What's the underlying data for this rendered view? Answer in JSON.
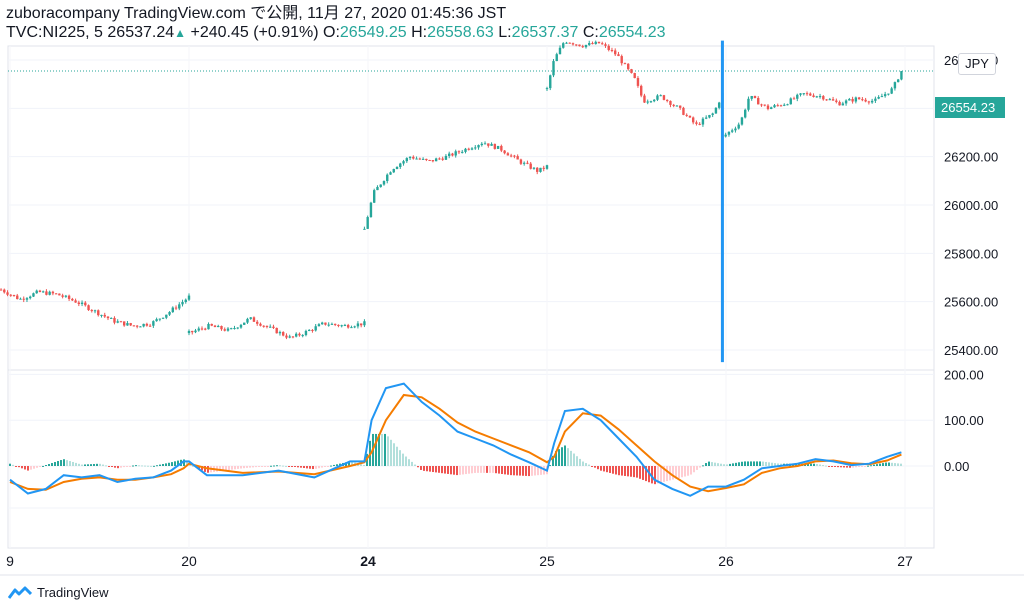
{
  "header": {
    "line1": "zuboracompany TradingView.com で公開, 11月 27, 2020 01:45:36 JST",
    "symbol": "TVC:NI225, 5",
    "price": "26537.24",
    "change": "+240.45 (+0.91%)",
    "o_label": "O:",
    "o_value": "26549.25",
    "h_label": "H:",
    "h_value": "26558.63",
    "l_label": "L:",
    "l_value": "26537.37",
    "c_label": "C:",
    "c_value": "26554.23",
    "up_arrow": "▲"
  },
  "currency_button": "JPY",
  "last_price_label": "26554.23",
  "footer": {
    "brand": "TradingView",
    "logo_icon": "tradingview-logo-icon"
  },
  "colors": {
    "up": "#26a69a",
    "down": "#ef5350",
    "macd": "#2196f3",
    "signal": "#f57c00",
    "vline": "#2196f3"
  },
  "chart_data": [
    {
      "type": "candlestick",
      "title": "",
      "yticks": [
        "26600.00",
        "26400.00",
        "26200.00",
        "26000.00",
        "25800.00",
        "25600.00",
        "25400.00"
      ],
      "ylim": [
        25300,
        26700
      ],
      "xticks": [
        {
          "label": "9",
          "pos": 0.0,
          "bold": false
        },
        {
          "label": "20",
          "pos": 1.0,
          "bold": false
        },
        {
          "label": "24",
          "pos": 2.0,
          "bold": true
        },
        {
          "label": "25",
          "pos": 3.0,
          "bold": false
        },
        {
          "label": "26",
          "pos": 4.0,
          "bold": false
        },
        {
          "label": "27",
          "pos": 5.0,
          "bold": false
        }
      ],
      "last_price": 26554.23,
      "vertical_line": {
        "pos": 3.98,
        "from": 25350,
        "to": 26680
      },
      "segments": [
        {
          "x0": -0.05,
          "x1": 1.0,
          "points": [
            [
              0.0,
              25650
            ],
            [
              0.1,
              25610
            ],
            [
              0.2,
              25640
            ],
            [
              0.3,
              25630
            ],
            [
              0.4,
              25600
            ],
            [
              0.5,
              25560
            ],
            [
              0.6,
              25520
            ],
            [
              0.7,
              25500
            ],
            [
              0.8,
              25510
            ],
            [
              0.9,
              25560
            ],
            [
              1.0,
              25620
            ]
          ]
        },
        {
          "x0": 1.0,
          "x1": 1.98,
          "points": [
            [
              0.0,
              25470
            ],
            [
              0.15,
              25500
            ],
            [
              0.3,
              25480
            ],
            [
              0.45,
              25530
            ],
            [
              0.6,
              25490
            ],
            [
              0.75,
              25450
            ],
            [
              0.85,
              25470
            ],
            [
              1.0,
              25510
            ],
            [
              1.15,
              25500
            ],
            [
              1.3,
              25510
            ]
          ]
        },
        {
          "x0": 1.98,
          "x1": 3.0,
          "points": [
            [
              0.0,
              25900
            ],
            [
              0.05,
              26050
            ],
            [
              0.15,
              26150
            ],
            [
              0.25,
              26200
            ],
            [
              0.35,
              26180
            ],
            [
              0.45,
              26200
            ],
            [
              0.55,
              26230
            ],
            [
              0.65,
              26260
            ],
            [
              0.75,
              26230
            ],
            [
              0.85,
              26180
            ],
            [
              0.95,
              26140
            ],
            [
              1.0,
              26160
            ]
          ]
        },
        {
          "x0": 3.0,
          "x1": 3.98,
          "points": [
            [
              0.0,
              26480
            ],
            [
              0.04,
              26600
            ],
            [
              0.1,
              26680
            ],
            [
              0.2,
              26660
            ],
            [
              0.3,
              26670
            ],
            [
              0.4,
              26620
            ],
            [
              0.5,
              26520
            ],
            [
              0.55,
              26430
            ],
            [
              0.65,
              26450
            ],
            [
              0.75,
              26400
            ],
            [
              0.85,
              26330
            ],
            [
              0.95,
              26380
            ],
            [
              1.0,
              26460
            ]
          ]
        },
        {
          "x0": 3.98,
          "x1": 4.98,
          "points": [
            [
              0.0,
              26280
            ],
            [
              0.1,
              26340
            ],
            [
              0.15,
              26450
            ],
            [
              0.25,
              26400
            ],
            [
              0.35,
              26420
            ],
            [
              0.45,
              26460
            ],
            [
              0.55,
              26450
            ],
            [
              0.65,
              26420
            ],
            [
              0.75,
              26440
            ],
            [
              0.85,
              26430
            ],
            [
              0.95,
              26480
            ],
            [
              1.0,
              26554
            ]
          ]
        }
      ]
    },
    {
      "type": "macd",
      "title": "",
      "yticks": [
        "200.00",
        "100.00",
        "0.00"
      ],
      "ylim": [
        -130,
        210
      ],
      "macd": [
        [
          0.0,
          -30
        ],
        [
          0.1,
          -60
        ],
        [
          0.2,
          -50
        ],
        [
          0.3,
          -20
        ],
        [
          0.4,
          -25
        ],
        [
          0.5,
          -20
        ],
        [
          0.6,
          -35
        ],
        [
          0.7,
          -28
        ],
        [
          0.8,
          -25
        ],
        [
          0.9,
          -10
        ],
        [
          0.97,
          10
        ],
        [
          1.0,
          10
        ],
        [
          1.1,
          -20
        ],
        [
          1.3,
          -20
        ],
        [
          1.5,
          -10
        ],
        [
          1.7,
          -25
        ],
        [
          1.9,
          10
        ],
        [
          1.98,
          10
        ],
        [
          2.02,
          100
        ],
        [
          2.1,
          170
        ],
        [
          2.2,
          180
        ],
        [
          2.3,
          140
        ],
        [
          2.4,
          110
        ],
        [
          2.5,
          75
        ],
        [
          2.6,
          60
        ],
        [
          2.7,
          45
        ],
        [
          2.8,
          25
        ],
        [
          2.9,
          8
        ],
        [
          3.0,
          -10
        ],
        [
          3.04,
          50
        ],
        [
          3.1,
          120
        ],
        [
          3.2,
          125
        ],
        [
          3.3,
          100
        ],
        [
          3.4,
          60
        ],
        [
          3.5,
          20
        ],
        [
          3.6,
          -30
        ],
        [
          3.7,
          -50
        ],
        [
          3.8,
          -65
        ],
        [
          3.9,
          -45
        ],
        [
          4.0,
          -45
        ],
        [
          4.1,
          -30
        ],
        [
          4.2,
          -5
        ],
        [
          4.3,
          0
        ],
        [
          4.4,
          5
        ],
        [
          4.5,
          15
        ],
        [
          4.6,
          10
        ],
        [
          4.7,
          2
        ],
        [
          4.8,
          5
        ],
        [
          4.9,
          20
        ],
        [
          4.98,
          30
        ]
      ],
      "signal": [
        [
          0.0,
          -35
        ],
        [
          0.1,
          -50
        ],
        [
          0.2,
          -52
        ],
        [
          0.3,
          -35
        ],
        [
          0.4,
          -28
        ],
        [
          0.5,
          -25
        ],
        [
          0.6,
          -30
        ],
        [
          0.7,
          -30
        ],
        [
          0.8,
          -25
        ],
        [
          0.9,
          -18
        ],
        [
          0.97,
          -5
        ],
        [
          1.0,
          5
        ],
        [
          1.1,
          -5
        ],
        [
          1.3,
          -15
        ],
        [
          1.5,
          -12
        ],
        [
          1.7,
          -18
        ],
        [
          1.9,
          0
        ],
        [
          1.98,
          8
        ],
        [
          2.02,
          30
        ],
        [
          2.1,
          100
        ],
        [
          2.2,
          155
        ],
        [
          2.3,
          150
        ],
        [
          2.4,
          125
        ],
        [
          2.5,
          95
        ],
        [
          2.6,
          75
        ],
        [
          2.7,
          60
        ],
        [
          2.8,
          45
        ],
        [
          2.9,
          30
        ],
        [
          3.0,
          8
        ],
        [
          3.04,
          20
        ],
        [
          3.1,
          75
        ],
        [
          3.2,
          115
        ],
        [
          3.3,
          110
        ],
        [
          3.4,
          80
        ],
        [
          3.5,
          45
        ],
        [
          3.6,
          10
        ],
        [
          3.7,
          -20
        ],
        [
          3.8,
          -45
        ],
        [
          3.9,
          -55
        ],
        [
          4.0,
          -48
        ],
        [
          4.1,
          -40
        ],
        [
          4.2,
          -15
        ],
        [
          4.3,
          -5
        ],
        [
          4.4,
          0
        ],
        [
          4.5,
          10
        ],
        [
          4.6,
          12
        ],
        [
          4.7,
          6
        ],
        [
          4.8,
          4
        ],
        [
          4.9,
          12
        ],
        [
          4.98,
          25
        ]
      ]
    }
  ]
}
